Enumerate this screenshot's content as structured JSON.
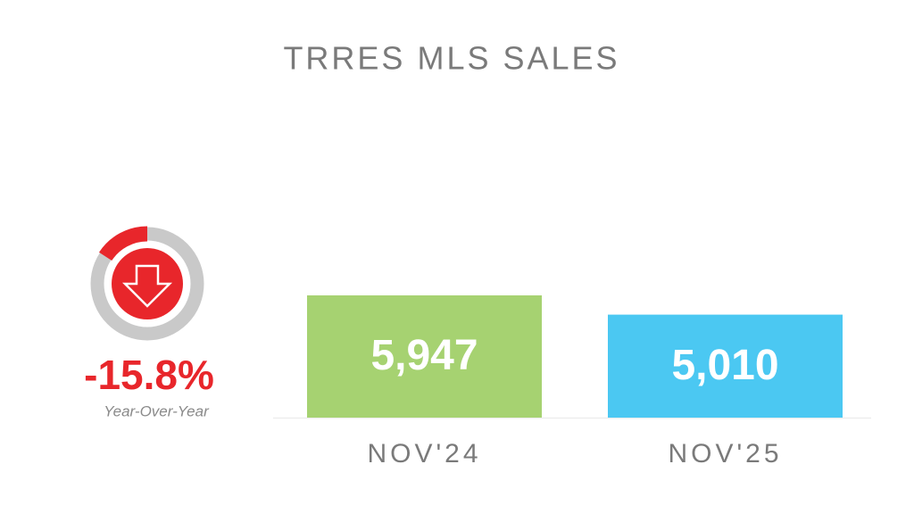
{
  "chart_data": [
    {
      "type": "bar",
      "title": "TRRES MLS SALES",
      "categories": [
        "NOV'24",
        "NOV'25"
      ],
      "values": [
        5947,
        5010
      ],
      "value_labels": [
        "5,947",
        "5,010"
      ],
      "colors": [
        "#a6d271",
        "#4bc8f2"
      ]
    },
    {
      "type": "donut",
      "value": -15.8,
      "value_label": "-15.8%",
      "caption": "Year-Over-Year",
      "color": "#e8262b",
      "track_color": "#c9c9c9"
    }
  ]
}
